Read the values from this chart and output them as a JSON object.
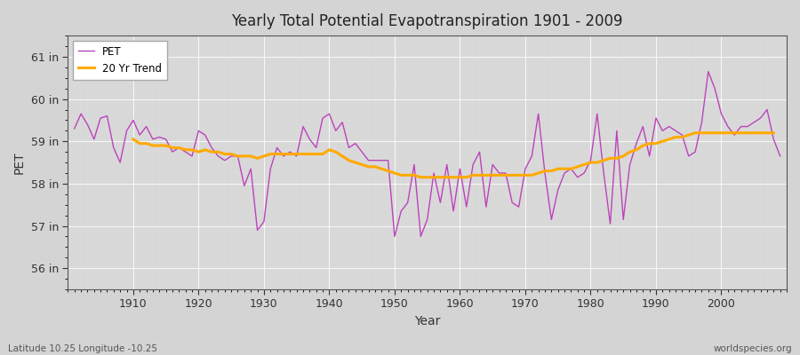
{
  "title": "Yearly Total Potential Evapotranspiration 1901 - 2009",
  "xlabel": "Year",
  "ylabel": "PET",
  "fig_bg_color": "#d4d4d4",
  "plot_bg_color": "#d8d8d8",
  "pet_color": "#bb44bb",
  "trend_color": "#ffaa00",
  "ylim": [
    55.5,
    61.5
  ],
  "yticks": [
    56,
    57,
    58,
    59,
    60,
    61
  ],
  "ytick_labels": [
    "56 in",
    "57 in",
    "58 in",
    "59 in",
    "60 in",
    "61 in"
  ],
  "xlim": [
    1900,
    2010
  ],
  "years": [
    1901,
    1902,
    1903,
    1904,
    1905,
    1906,
    1907,
    1908,
    1909,
    1910,
    1911,
    1912,
    1913,
    1914,
    1915,
    1916,
    1917,
    1918,
    1919,
    1920,
    1921,
    1922,
    1923,
    1924,
    1925,
    1926,
    1927,
    1928,
    1929,
    1930,
    1931,
    1932,
    1933,
    1934,
    1935,
    1936,
    1937,
    1938,
    1939,
    1940,
    1941,
    1942,
    1943,
    1944,
    1945,
    1946,
    1947,
    1948,
    1949,
    1950,
    1951,
    1952,
    1953,
    1954,
    1955,
    1956,
    1957,
    1958,
    1959,
    1960,
    1961,
    1962,
    1963,
    1964,
    1965,
    1966,
    1967,
    1968,
    1969,
    1970,
    1971,
    1972,
    1973,
    1974,
    1975,
    1976,
    1977,
    1978,
    1979,
    1980,
    1981,
    1982,
    1983,
    1984,
    1985,
    1986,
    1987,
    1988,
    1989,
    1990,
    1991,
    1992,
    1993,
    1994,
    1995,
    1996,
    1997,
    1998,
    1999,
    2000,
    2001,
    2002,
    2003,
    2004,
    2005,
    2006,
    2007,
    2008,
    2009
  ],
  "pet": [
    59.3,
    59.65,
    59.4,
    59.05,
    59.55,
    59.6,
    58.85,
    58.5,
    59.25,
    59.5,
    59.15,
    59.35,
    59.05,
    59.1,
    59.05,
    58.75,
    58.85,
    58.75,
    58.65,
    59.25,
    59.15,
    58.85,
    58.65,
    58.55,
    58.65,
    58.65,
    57.95,
    58.35,
    56.9,
    57.1,
    58.35,
    58.85,
    58.65,
    58.75,
    58.65,
    59.35,
    59.05,
    58.85,
    59.55,
    59.65,
    59.25,
    59.45,
    58.85,
    58.95,
    58.75,
    58.55,
    58.55,
    58.55,
    58.55,
    56.75,
    57.35,
    57.55,
    58.45,
    56.75,
    57.15,
    58.25,
    57.55,
    58.45,
    57.35,
    58.35,
    57.45,
    58.45,
    58.75,
    57.45,
    58.45,
    58.25,
    58.25,
    57.55,
    57.45,
    58.35,
    58.65,
    59.65,
    58.25,
    57.15,
    57.85,
    58.25,
    58.35,
    58.15,
    58.25,
    58.55,
    59.65,
    58.25,
    57.05,
    59.25,
    57.15,
    58.45,
    58.95,
    59.35,
    58.65,
    59.55,
    59.25,
    59.35,
    59.25,
    59.15,
    58.65,
    58.75,
    59.45,
    60.65,
    60.25,
    59.65,
    59.35,
    59.15,
    59.35,
    59.35,
    59.45,
    59.55,
    59.75,
    59.05,
    58.65
  ],
  "trend": [
    null,
    null,
    null,
    null,
    null,
    null,
    null,
    null,
    null,
    59.05,
    58.95,
    58.95,
    58.9,
    58.9,
    58.9,
    58.85,
    58.85,
    58.8,
    58.8,
    58.75,
    58.8,
    58.75,
    58.75,
    58.7,
    58.7,
    58.65,
    58.65,
    58.65,
    58.6,
    58.65,
    58.7,
    58.7,
    58.7,
    58.7,
    58.7,
    58.7,
    58.7,
    58.7,
    58.7,
    58.8,
    58.75,
    58.65,
    58.55,
    58.5,
    58.45,
    58.4,
    58.4,
    58.35,
    58.3,
    58.25,
    58.2,
    58.2,
    58.2,
    58.15,
    58.15,
    58.15,
    58.15,
    58.15,
    58.15,
    58.15,
    58.15,
    58.2,
    58.2,
    58.2,
    58.2,
    58.2,
    58.2,
    58.2,
    58.2,
    58.2,
    58.2,
    58.25,
    58.3,
    58.3,
    58.35,
    58.35,
    58.35,
    58.4,
    58.45,
    58.5,
    58.5,
    58.55,
    58.6,
    58.6,
    58.65,
    58.75,
    58.8,
    58.9,
    58.95,
    58.95,
    59.0,
    59.05,
    59.1,
    59.1,
    59.15,
    59.2,
    59.2,
    59.2,
    59.2,
    59.2,
    59.2,
    59.2,
    59.2,
    59.2,
    59.2,
    59.2,
    59.2,
    59.2
  ],
  "footer_left": "Latitude 10.25 Longitude -10.25",
  "footer_right": "worldspecies.org",
  "legend_pet": "PET",
  "legend_trend": "20 Yr Trend"
}
